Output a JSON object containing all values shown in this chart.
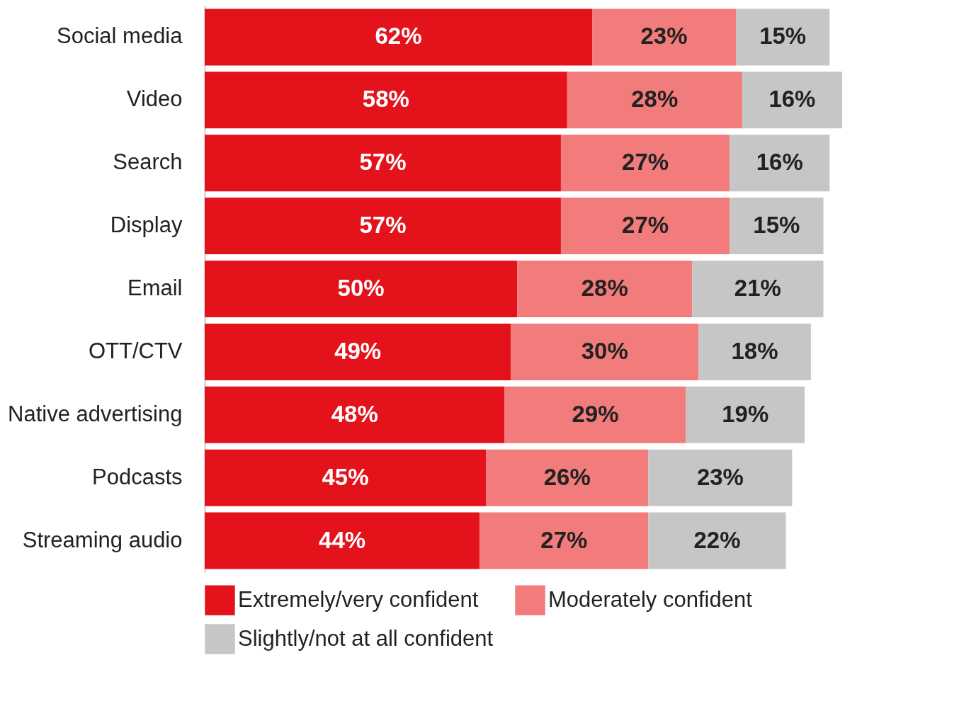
{
  "chart_data": {
    "type": "bar",
    "orientation": "horizontal",
    "stacked": true,
    "legend": "bottom",
    "categories": [
      "Social media",
      "Video",
      "Search",
      "Display",
      "Email",
      "OTT/CTV",
      "Native advertising",
      "Podcasts",
      "Streaming audio"
    ],
    "series": [
      {
        "name": "Extremely/very confident",
        "color": "#e3121b",
        "values": [
          62,
          58,
          57,
          57,
          50,
          49,
          48,
          45,
          44
        ],
        "value_labels": [
          "62%",
          "58%",
          "57%",
          "57%",
          "50%",
          "49%",
          "48%",
          "45%",
          "44%"
        ]
      },
      {
        "name": "Moderately confident",
        "color": "#f27b7b",
        "values": [
          23,
          28,
          27,
          27,
          28,
          30,
          29,
          26,
          27
        ],
        "value_labels": [
          "23%",
          "28%",
          "27%",
          "27%",
          "28%",
          "30%",
          "29%",
          "26%",
          "27%"
        ]
      },
      {
        "name": "Slightly/not at all confident",
        "color": "#c6c6c6",
        "values": [
          15,
          16,
          16,
          15,
          21,
          18,
          19,
          23,
          22
        ],
        "value_labels": [
          "15%",
          "16%",
          "16%",
          "15%",
          "21%",
          "18%",
          "19%",
          "23%",
          "22%"
        ]
      }
    ]
  }
}
